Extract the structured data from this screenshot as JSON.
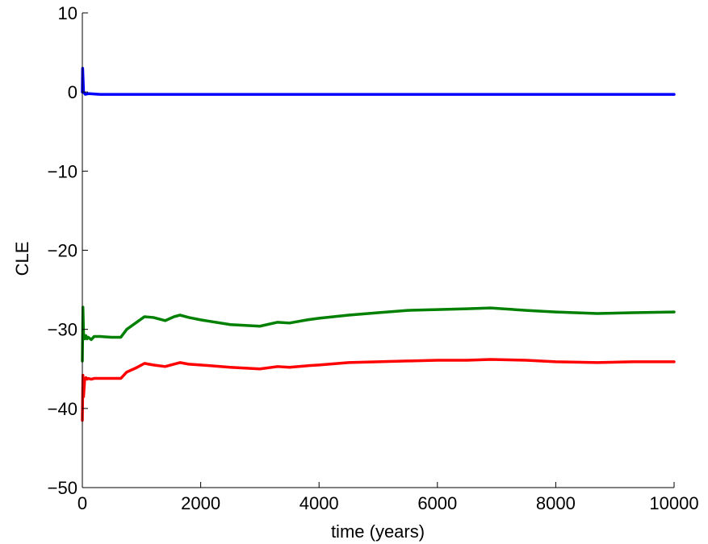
{
  "chart_data": {
    "type": "line",
    "title": "",
    "xlabel": "time (years)",
    "ylabel": "CLE",
    "xlim": [
      0,
      10000
    ],
    "ylim": [
      -50,
      10
    ],
    "xticks": [
      0,
      2000,
      4000,
      6000,
      8000,
      10000
    ],
    "xtick_labels": [
      "0",
      "2000",
      "4000",
      "6000",
      "8000",
      "10000"
    ],
    "yticks": [
      -50,
      -40,
      -30,
      -20,
      -10,
      0,
      10
    ],
    "ytick_labels": [
      "−50",
      "−40",
      "−30",
      "−20",
      "−10",
      "0",
      "10"
    ],
    "grid": false,
    "series": [
      {
        "color": "#0000ff",
        "x": [
          0,
          5,
          20,
          50,
          100,
          300,
          1000,
          3000,
          6000,
          8000,
          10000
        ],
        "y": [
          0,
          3,
          0,
          -0.3,
          -0.2,
          -0.3,
          -0.3,
          -0.3,
          -0.3,
          -0.3,
          -0.3
        ]
      },
      {
        "color": "#008000",
        "x": [
          0,
          10,
          20,
          40,
          60,
          80,
          100,
          150,
          200,
          300,
          500,
          650,
          750,
          900,
          1050,
          1200,
          1400,
          1550,
          1650,
          1800,
          2000,
          2500,
          3000,
          3300,
          3500,
          3800,
          4000,
          4500,
          5000,
          5500,
          6000,
          6500,
          6900,
          7500,
          8000,
          8700,
          9300,
          10000
        ],
        "y": [
          -34,
          -27.2,
          -30.5,
          -31.2,
          -30.8,
          -31.2,
          -31.0,
          -31.3,
          -30.9,
          -30.9,
          -31.0,
          -31.0,
          -30.0,
          -29.2,
          -28.4,
          -28.5,
          -28.9,
          -28.4,
          -28.2,
          -28.5,
          -28.8,
          -29.4,
          -29.6,
          -29.1,
          -29.2,
          -28.8,
          -28.6,
          -28.2,
          -27.9,
          -27.6,
          -27.5,
          -27.4,
          -27.3,
          -27.6,
          -27.8,
          -28.0,
          -27.9,
          -27.8
        ]
      },
      {
        "color": "#ff0000",
        "x": [
          0,
          10,
          20,
          40,
          60,
          80,
          100,
          150,
          200,
          300,
          500,
          650,
          750,
          900,
          1050,
          1200,
          1400,
          1550,
          1650,
          1800,
          2000,
          2500,
          3000,
          3300,
          3500,
          3800,
          4000,
          4500,
          5000,
          5500,
          6000,
          6500,
          6900,
          7500,
          8000,
          8700,
          9300,
          10000
        ],
        "y": [
          -41.5,
          -35.8,
          -38.5,
          -36.3,
          -36.1,
          -36.3,
          -36.2,
          -36.3,
          -36.2,
          -36.2,
          -36.2,
          -36.2,
          -35.4,
          -34.9,
          -34.3,
          -34.5,
          -34.7,
          -34.4,
          -34.2,
          -34.4,
          -34.5,
          -34.8,
          -35.0,
          -34.7,
          -34.8,
          -34.6,
          -34.5,
          -34.2,
          -34.1,
          -34.0,
          -33.9,
          -33.9,
          -33.8,
          -33.9,
          -34.1,
          -34.2,
          -34.1,
          -34.1
        ]
      }
    ]
  }
}
